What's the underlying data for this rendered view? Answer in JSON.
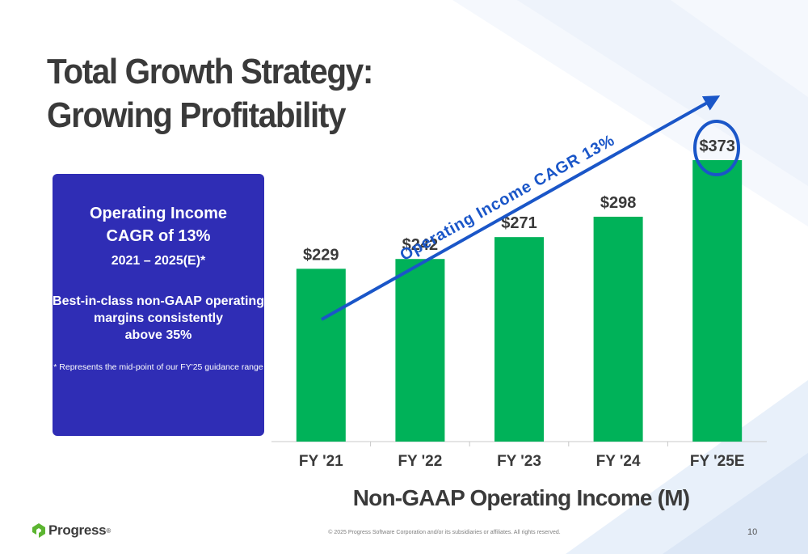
{
  "slide": {
    "title_line1": "Total Growth Strategy:",
    "title_line2": "Growing Profitability",
    "page_number": "10",
    "copyright": "© 2025 Progress Software Corporation and/or its subsidiaries or affiliates. All rights reserved.",
    "logo_text": "Progress",
    "logo_registered": "®"
  },
  "callout": {
    "line1": "Operating Income",
    "line2": "CAGR of 13%",
    "line3": "2021 – 2025(E)*",
    "line4": "Best-in-class non-GAAP operating",
    "line5": "margins consistently",
    "line6": "above 35%",
    "note": "* Represents the mid-point of our FY'25 guidance range"
  },
  "chart_data": {
    "type": "bar",
    "categories": [
      "FY '21",
      "FY '22",
      "FY '23",
      "FY '24",
      "FY '25E"
    ],
    "values": [
      229,
      242,
      271,
      298,
      373
    ],
    "data_labels": [
      "$229",
      "$242",
      "$271",
      "$298",
      "$373"
    ],
    "xlabel": "Non-GAAP Operating Income (M)",
    "ylabel": "",
    "trend_annotation": "Operating Income CAGR 13%",
    "highlighted_category": "FY '25E",
    "grid": false,
    "colors": {
      "bar": "#00b259",
      "arrow": "#1a56c8",
      "highlight": "#1a56c8",
      "axis": "#c8c8c8"
    }
  },
  "colors": {
    "title": "#3a3a3a",
    "callout_bg": "#2f2db5",
    "brand_green": "#5cb531"
  }
}
